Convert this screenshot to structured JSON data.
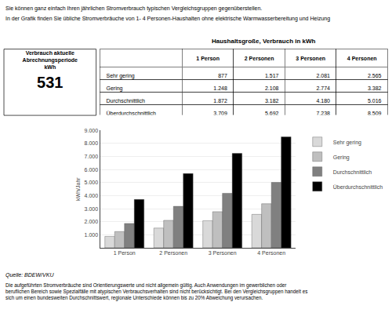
{
  "chart_data": [
    {
      "type": "indicator",
      "title": "Verbrauch aktuelle\nAbrechnungsperiode\nkWh",
      "values": [
        531
      ]
    },
    {
      "type": "table",
      "title": "Haushaltsgroße, Verbrauch in kWh",
      "categories": [
        "1 Person",
        "2 Personen",
        "3 Personen",
        "4 Personen"
      ],
      "series": [
        {
          "name": "Sehr gering",
          "values": [
            877,
            1517,
            2081,
            2565
          ],
          "value_labels": [
            "877",
            "1.517",
            "2.081",
            "2.565"
          ]
        },
        {
          "name": "Gering",
          "values": [
            1248,
            2108,
            2774,
            3382
          ],
          "value_labels": [
            "1.248",
            "2.108",
            "2.774",
            "3.382"
          ]
        },
        {
          "name": "Durchschnittlich",
          "values": [
            1872,
            3182,
            4180,
            5016
          ],
          "value_labels": [
            "1.872",
            "3.182",
            "4.180",
            "5.016"
          ]
        },
        {
          "name": "Überdurchschnittlich",
          "values": [
            3709,
            5692,
            7238,
            8509
          ],
          "value_labels": [
            "3.709",
            "5.692",
            "7.238",
            "8.509"
          ]
        }
      ]
    },
    {
      "type": "bar",
      "title": "Sie können ganz einfach Ihren jährlichen Stromverbrauch typischen Vergleichsgruppen gegenüberstellen.",
      "subtitle": "In der Grafik finden Sie übliche Stromverbräuche von 1- 4 Personen-Haushalten ohne elektrische Warmwasserbereitung und Heizung",
      "categories": [
        "1 Person",
        "2 Personen",
        "3 Personen",
        "4 Personen"
      ],
      "series": [
        {
          "name": "Sehr gering",
          "color": "#d9d9d9",
          "values": [
            877,
            1517,
            2081,
            2565
          ]
        },
        {
          "name": "Gering",
          "color": "#bfbfbf",
          "values": [
            1248,
            2108,
            2774,
            3382
          ]
        },
        {
          "name": "Durchschnittlich",
          "color": "#808080",
          "values": [
            1872,
            3182,
            4180,
            5016
          ]
        },
        {
          "name": "Überdurchschnittlich",
          "color": "#000000",
          "values": [
            3709,
            5692,
            7238,
            8509
          ]
        }
      ],
      "ylabel": "kWh/Jahr",
      "ylim": [
        0,
        9000
      ],
      "yticks": [
        {
          "value": 1000,
          "label": "1.000"
        },
        {
          "value": 2000,
          "label": "2.000"
        },
        {
          "value": 3000,
          "label": "3.000"
        },
        {
          "value": 4000,
          "label": "4.000"
        },
        {
          "value": 5000,
          "label": "5.000"
        },
        {
          "value": 6000,
          "label": "6.000"
        },
        {
          "value": 7000,
          "label": "7.000"
        },
        {
          "value": 8000,
          "label": "8.000"
        },
        {
          "value": 9000,
          "label": "9.000"
        }
      ],
      "grid": true,
      "legend": "right",
      "annotations": [
        "Quelle: BDEW/VKU",
        "Die aufgeführten Stromverbräuche sind Orientierungswerte und nicht allgemein gültig. Auch Anwendungen im gewerblichen oder\nberuflichen Bereich sowie Spezialfälle mit atypischen Verbrauchsverhalten sind nicht berücksichtigt. Bei den Vergleichsgruppen handelt es\nsich um einen bundesweiten Durchschnittswert, regionale Unterschiede können bis zu 20% Abweichung verursachen."
      ]
    }
  ]
}
